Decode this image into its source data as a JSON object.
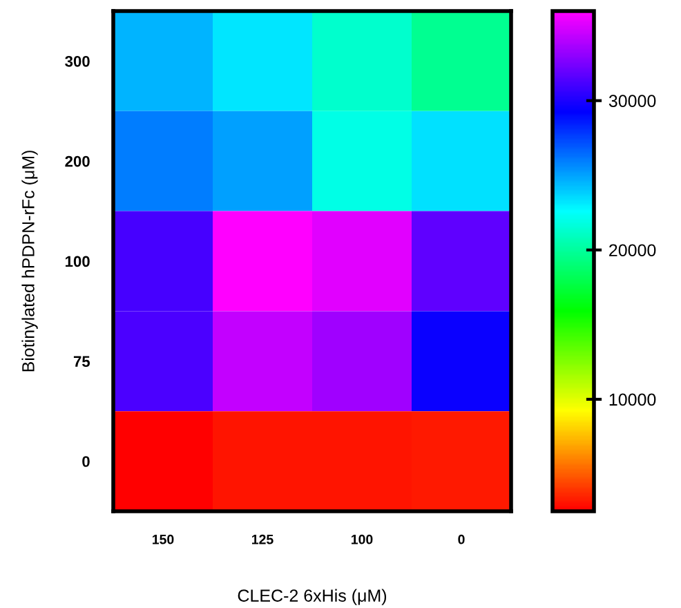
{
  "chart_data": {
    "type": "heatmap",
    "xlabel": "CLEC-2 6xHis (μM)",
    "ylabel": "Biotinylated hPDPN-rFc (μM)",
    "categories": [
      "150",
      "125",
      "100",
      "0"
    ],
    "y_categories": [
      "300",
      "200",
      "100",
      "75",
      "0"
    ],
    "cells": [
      [
        24500,
        23300,
        21300,
        19700
      ],
      [
        26000,
        25100,
        21900,
        23400
      ],
      [
        31100,
        36000,
        35100,
        31800
      ],
      [
        31200,
        34300,
        33500,
        29500
      ],
      [
        2500,
        3100,
        3100,
        3200
      ]
    ],
    "clim": [
      2500,
      36000
    ],
    "cticks": [
      10000,
      20000,
      30000
    ]
  }
}
